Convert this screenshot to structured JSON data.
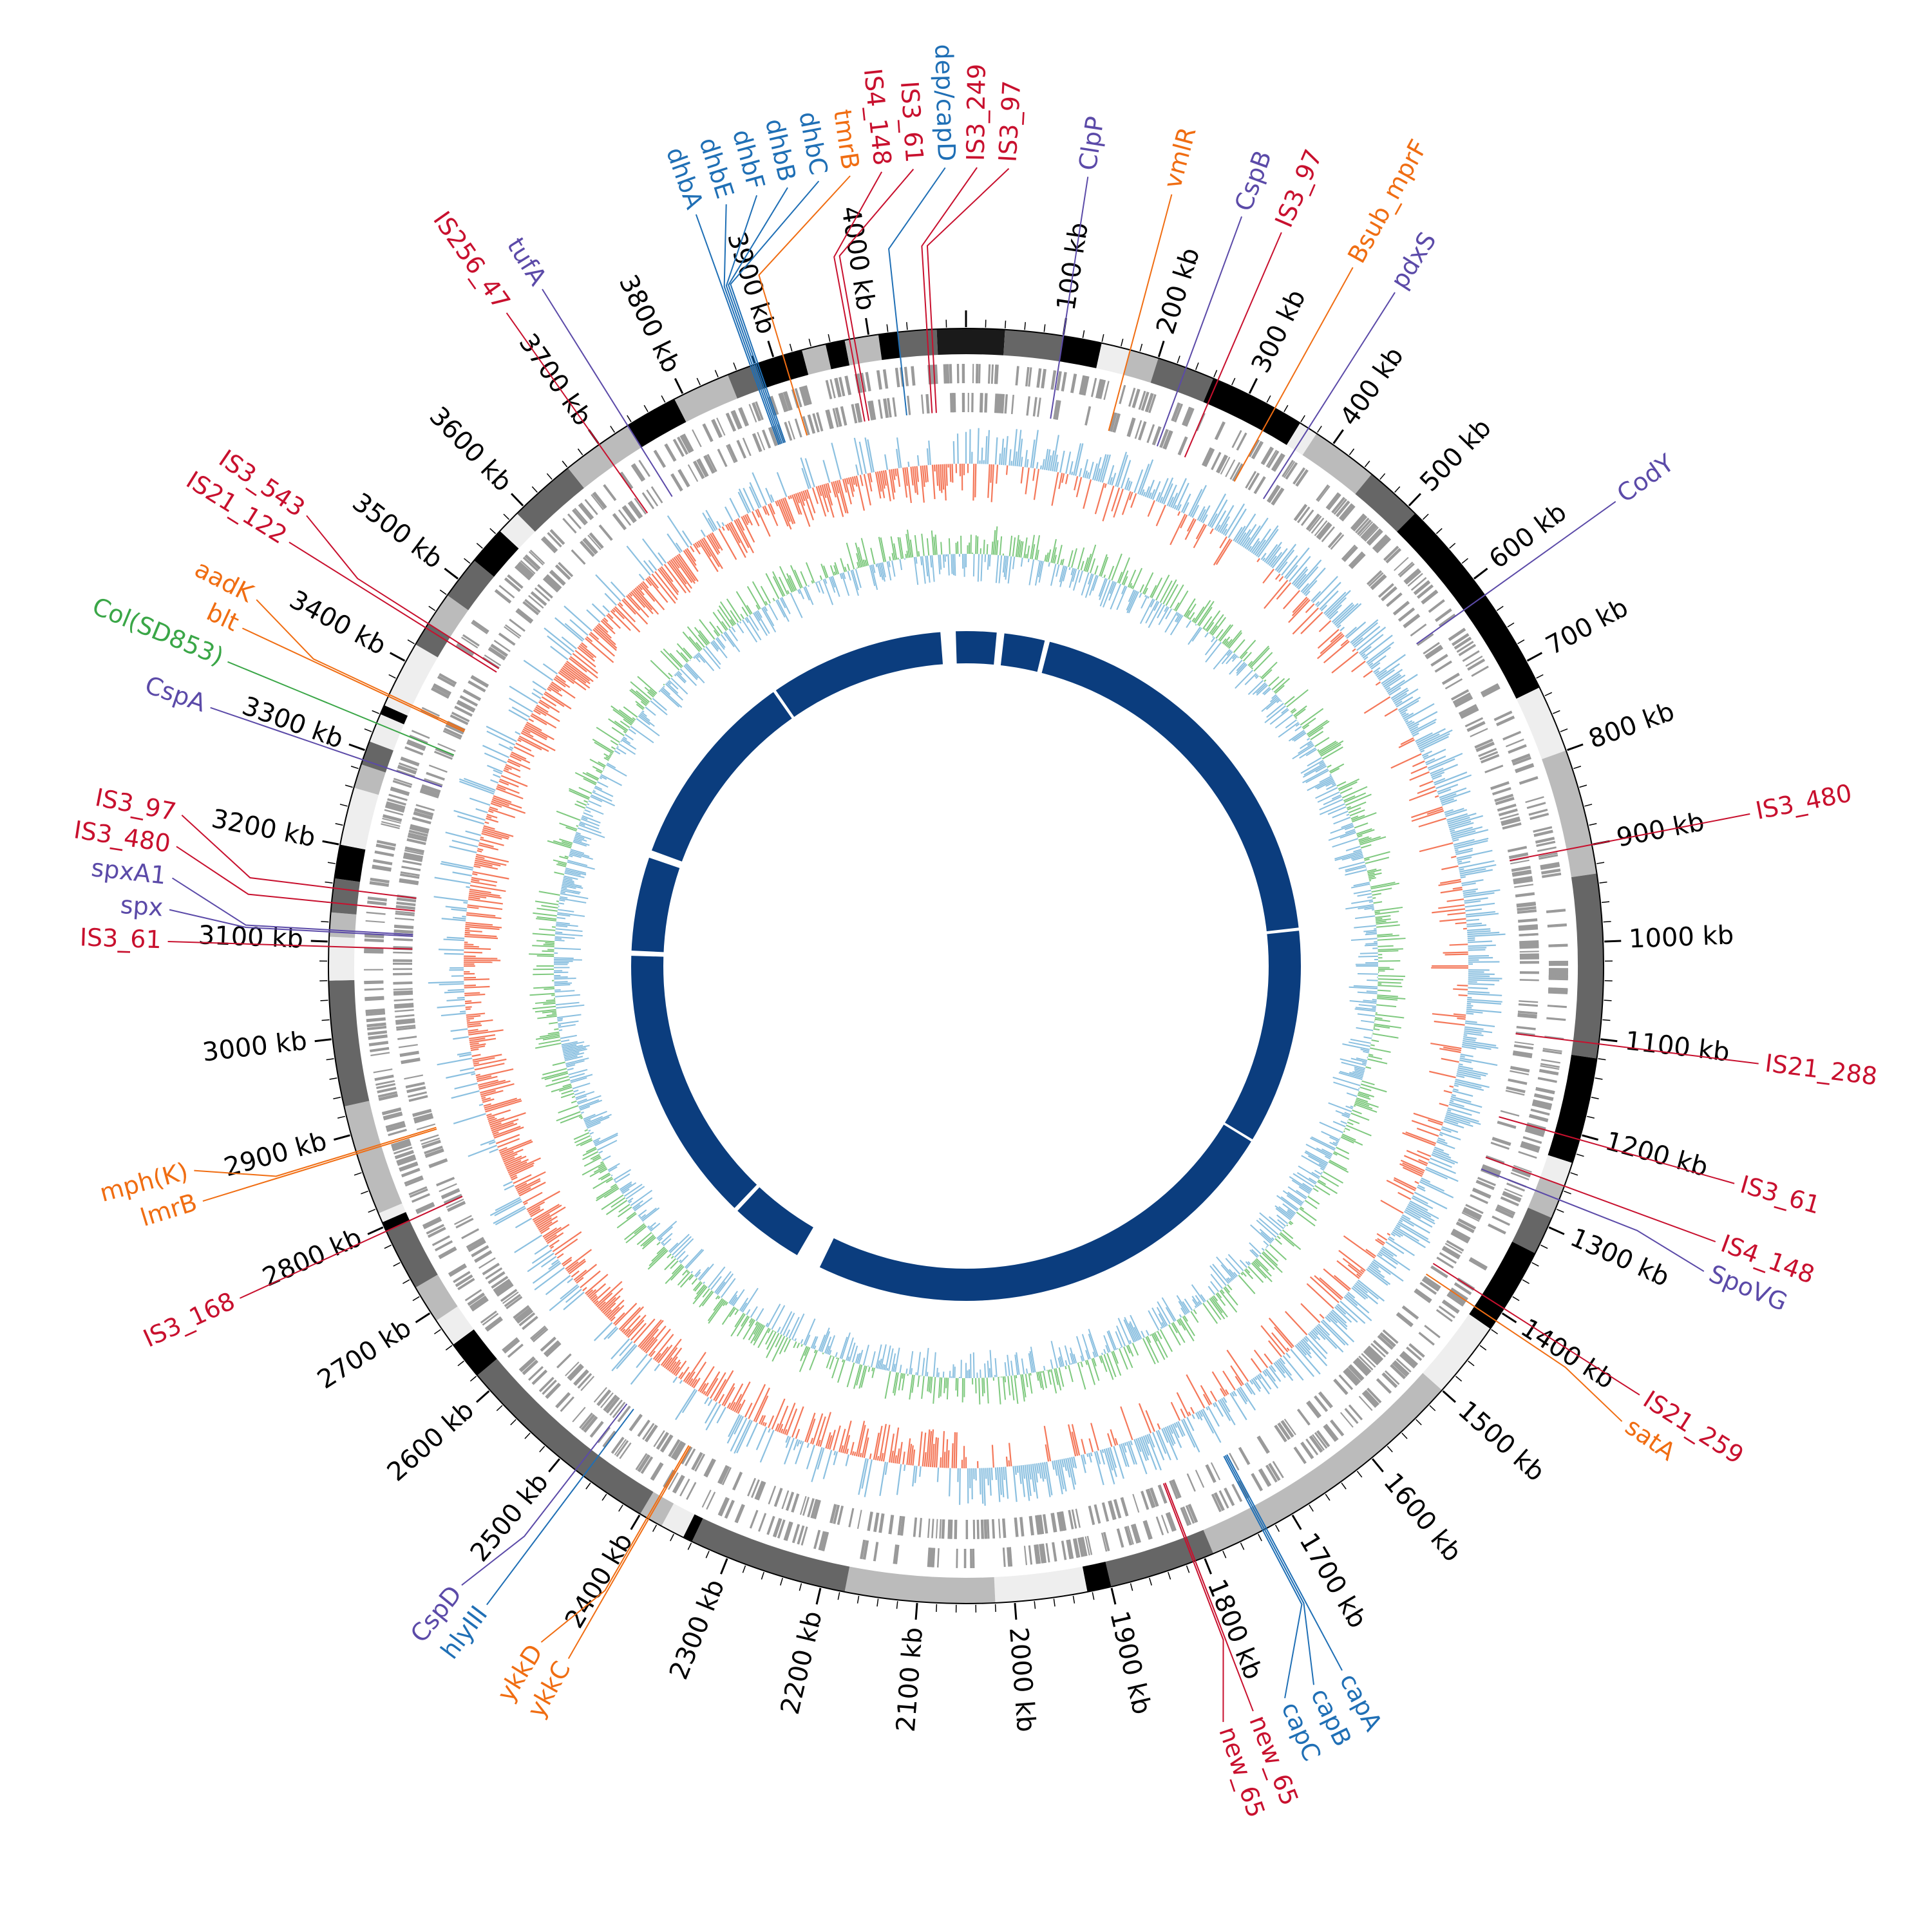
{
  "genome": {
    "length_kb": 4100,
    "ticks": [
      "100 kb",
      "200 kb",
      "300 kb",
      "400 kb",
      "500 kb",
      "600 kb",
      "700 kb",
      "800 kb",
      "900 kb",
      "1000 kb",
      "1100 kb",
      "1200 kb",
      "1300 kb",
      "1400 kb",
      "1500 kb",
      "1600 kb",
      "1700 kb",
      "1800 kb",
      "1900 kb",
      "2000 kb",
      "2100 kb",
      "2200 kb",
      "2300 kb",
      "2400 kb",
      "2500 kb",
      "2600 kb",
      "2700 kb",
      "2800 kb",
      "2900 kb",
      "3000 kb",
      "3100 kb",
      "3200 kb",
      "3300 kb",
      "3400 kb",
      "3500 kb",
      "3600 kb",
      "3700 kb",
      "3800 kb",
      "3900 kb",
      "4000 kb"
    ],
    "tick_values_kb": [
      100,
      200,
      300,
      400,
      500,
      600,
      700,
      800,
      900,
      1000,
      1100,
      1200,
      1300,
      1400,
      1500,
      1600,
      1700,
      1800,
      1900,
      2000,
      2100,
      2200,
      2300,
      2400,
      2500,
      2600,
      2700,
      2800,
      2900,
      3000,
      3100,
      3200,
      3300,
      3400,
      3500,
      3600,
      3700,
      3800,
      3900,
      4000
    ]
  },
  "colors": {
    "is_element": "#c8102e",
    "resistance": "#f06d12",
    "regulator": "#5b4aa8",
    "virulence": "#1f6fb5",
    "plasmid": "#3aa647",
    "gc_skew_pos": "#8bc0e0",
    "gc_skew_neg": "#f4785a",
    "gc_content": "#7fc97f",
    "homology": "#0b3d7e",
    "cds": "#9a9a9a"
  },
  "contigs": [
    {
      "start": 0,
      "end": 40,
      "shade": "#1a1a1a"
    },
    {
      "start": 40,
      "end": 100,
      "shade": "#666666"
    },
    {
      "start": 100,
      "end": 140,
      "shade": "#000000"
    },
    {
      "start": 140,
      "end": 170,
      "shade": "#eeeeee"
    },
    {
      "start": 170,
      "end": 200,
      "shade": "#bbbbbb"
    },
    {
      "start": 200,
      "end": 260,
      "shade": "#666666"
    },
    {
      "start": 260,
      "end": 360,
      "shade": "#000000"
    },
    {
      "start": 360,
      "end": 380,
      "shade": "#eeeeee"
    },
    {
      "start": 380,
      "end": 450,
      "shade": "#bbbbbb"
    },
    {
      "start": 450,
      "end": 510,
      "shade": "#666666"
    },
    {
      "start": 510,
      "end": 730,
      "shade": "#000000"
    },
    {
      "start": 730,
      "end": 800,
      "shade": "#eeeeee"
    },
    {
      "start": 800,
      "end": 930,
      "shade": "#bbbbbb"
    },
    {
      "start": 930,
      "end": 1120,
      "shade": "#666666"
    },
    {
      "start": 1120,
      "end": 1230,
      "shade": "#000000"
    },
    {
      "start": 1230,
      "end": 1255,
      "shade": "#eeeeee"
    },
    {
      "start": 1255,
      "end": 1290,
      "shade": "#bbbbbb"
    },
    {
      "start": 1290,
      "end": 1330,
      "shade": "#666666"
    },
    {
      "start": 1330,
      "end": 1420,
      "shade": "#000000"
    },
    {
      "start": 1420,
      "end": 1500,
      "shade": "#eeeeee"
    },
    {
      "start": 1500,
      "end": 1790,
      "shade": "#bbbbbb"
    },
    {
      "start": 1790,
      "end": 1900,
      "shade": "#666666"
    },
    {
      "start": 1900,
      "end": 1925,
      "shade": "#000000"
    },
    {
      "start": 1925,
      "end": 2020,
      "shade": "#eeeeee"
    },
    {
      "start": 2020,
      "end": 2175,
      "shade": "#bbbbbb"
    },
    {
      "start": 2175,
      "end": 2340,
      "shade": "#666666"
    },
    {
      "start": 2340,
      "end": 2350,
      "shade": "#000000"
    },
    {
      "start": 2350,
      "end": 2375,
      "shade": "#eeeeee"
    },
    {
      "start": 2375,
      "end": 2400,
      "shade": "#bbbbbb"
    },
    {
      "start": 2400,
      "end": 2620,
      "shade": "#666666"
    },
    {
      "start": 2620,
      "end": 2660,
      "shade": "#000000"
    },
    {
      "start": 2660,
      "end": 2690,
      "shade": "#eeeeee"
    },
    {
      "start": 2690,
      "end": 2730,
      "shade": "#bbbbbb"
    },
    {
      "start": 2730,
      "end": 2795,
      "shade": "#666666"
    },
    {
      "start": 2795,
      "end": 2805,
      "shade": "#000000"
    },
    {
      "start": 2805,
      "end": 2815,
      "shade": "#eeeeee"
    },
    {
      "start": 2815,
      "end": 2930,
      "shade": "#bbbbbb"
    },
    {
      "start": 2930,
      "end": 3060,
      "shade": "#666666"
    },
    {
      "start": 3060,
      "end": 3105,
      "shade": "#eeeeee"
    },
    {
      "start": 3105,
      "end": 3130,
      "shade": "#bbbbbb"
    },
    {
      "start": 3130,
      "end": 3165,
      "shade": "#666666"
    },
    {
      "start": 3165,
      "end": 3200,
      "shade": "#000000"
    },
    {
      "start": 3200,
      "end": 3260,
      "shade": "#eeeeee"
    },
    {
      "start": 3260,
      "end": 3285,
      "shade": "#bbbbbb"
    },
    {
      "start": 3285,
      "end": 3310,
      "shade": "#666666"
    },
    {
      "start": 3310,
      "end": 3340,
      "shade": "#eeeeee"
    },
    {
      "start": 3340,
      "end": 3350,
      "shade": "#000000"
    },
    {
      "start": 3350,
      "end": 3420,
      "shade": "#eeeeee"
    },
    {
      "start": 3420,
      "end": 3445,
      "shade": "#666666"
    },
    {
      "start": 3445,
      "end": 3480,
      "shade": "#bbbbbb"
    },
    {
      "start": 3480,
      "end": 3525,
      "shade": "#666666"
    },
    {
      "start": 3525,
      "end": 3565,
      "shade": "#000000"
    },
    {
      "start": 3565,
      "end": 3590,
      "shade": "#eeeeee"
    },
    {
      "start": 3590,
      "end": 3660,
      "shade": "#666666"
    },
    {
      "start": 3660,
      "end": 3735,
      "shade": "#bbbbbb"
    },
    {
      "start": 3735,
      "end": 3790,
      "shade": "#000000"
    },
    {
      "start": 3790,
      "end": 3850,
      "shade": "#bbbbbb"
    },
    {
      "start": 3850,
      "end": 3880,
      "shade": "#666666"
    },
    {
      "start": 3880,
      "end": 3930,
      "shade": "#000000"
    },
    {
      "start": 3930,
      "end": 3955,
      "shade": "#bbbbbb"
    },
    {
      "start": 3955,
      "end": 3975,
      "shade": "#000000"
    },
    {
      "start": 3975,
      "end": 4010,
      "shade": "#bbbbbb"
    },
    {
      "start": 4010,
      "end": 4030,
      "shade": "#000000"
    },
    {
      "start": 4030,
      "end": 4070,
      "shade": "#666666"
    },
    {
      "start": 4070,
      "end": 4100,
      "shade": "#1a1a1a"
    }
  ],
  "homology_gaps": [
    {
      "start": 4050,
      "end": 4080
    },
    {
      "start": 60,
      "end": 75
    },
    {
      "start": 155,
      "end": 165
    },
    {
      "start": 2345,
      "end": 2395
    },
    {
      "start": 2540,
      "end": 2548
    },
    {
      "start": 3095,
      "end": 3105
    },
    {
      "start": 3290,
      "end": 3305
    },
    {
      "start": 3700,
      "end": 3706
    },
    {
      "start": 1380,
      "end": 1385
    },
    {
      "start": 950,
      "end": 956
    }
  ],
  "annotations": [
    {
      "name": "ClpP",
      "pos": 100,
      "category": "regulator"
    },
    {
      "name": "vmlR",
      "pos": 170,
      "category": "resistance"
    },
    {
      "name": "CspB",
      "pos": 230,
      "category": "regulator"
    },
    {
      "name": "IS3_97",
      "pos": 265,
      "category": "is_element"
    },
    {
      "name": "Bsub_mprF",
      "pos": 330,
      "category": "resistance"
    },
    {
      "name": "pdxS",
      "pos": 370,
      "category": "regulator"
    },
    {
      "name": "CodY",
      "pos": 620,
      "category": "regulator"
    },
    {
      "name": "IS3_480",
      "pos": 900,
      "category": "is_element"
    },
    {
      "name": "IS21_288",
      "pos": 1105,
      "category": "is_element"
    },
    {
      "name": "IS3_61",
      "pos": 1205,
      "category": "is_element"
    },
    {
      "name": "IS4_148",
      "pos": 1255,
      "category": "is_element"
    },
    {
      "name": "SpoVG",
      "pos": 1270,
      "category": "regulator"
    },
    {
      "name": "IS21_259",
      "pos": 1395,
      "category": "is_element"
    },
    {
      "name": "satA",
      "pos": 1410,
      "category": "resistance"
    },
    {
      "name": "capA",
      "pos": 1730,
      "category": "virulence"
    },
    {
      "name": "capB",
      "pos": 1732,
      "category": "virulence"
    },
    {
      "name": "capC",
      "pos": 1734,
      "category": "virulence"
    },
    {
      "name": "new_65",
      "pos": 1810,
      "category": "is_element"
    },
    {
      "name": "new_65",
      "pos": 1812,
      "category": "is_element"
    },
    {
      "name": "ykkC",
      "pos": 2390,
      "category": "resistance"
    },
    {
      "name": "ykkD",
      "pos": 2392,
      "category": "resistance"
    },
    {
      "name": "hlyIII",
      "pos": 2470,
      "category": "virulence"
    },
    {
      "name": "CspD",
      "pos": 2480,
      "category": "regulator"
    },
    {
      "name": "IS3_168",
      "pos": 2795,
      "category": "is_element"
    },
    {
      "name": "lmrB",
      "pos": 2880,
      "category": "resistance"
    },
    {
      "name": "mph(K)",
      "pos": 2882,
      "category": "resistance"
    },
    {
      "name": "IS3_61",
      "pos": 3095,
      "category": "is_element"
    },
    {
      "name": "spx",
      "pos": 3110,
      "category": "regulator"
    },
    {
      "name": "spxA1",
      "pos": 3112,
      "category": "regulator"
    },
    {
      "name": "IS3_480",
      "pos": 3140,
      "category": "is_element"
    },
    {
      "name": "IS3_97",
      "pos": 3155,
      "category": "is_element"
    },
    {
      "name": "CspA",
      "pos": 3290,
      "category": "regulator"
    },
    {
      "name": "Col(SD853)",
      "pos": 3330,
      "category": "plasmid"
    },
    {
      "name": "blt",
      "pos": 3360,
      "category": "resistance"
    },
    {
      "name": "aadK",
      "pos": 3362,
      "category": "resistance"
    },
    {
      "name": "IS21_122",
      "pos": 3440,
      "category": "is_element"
    },
    {
      "name": "IS3_543",
      "pos": 3445,
      "category": "is_element"
    },
    {
      "name": "IS256_47",
      "pos": 3700,
      "category": "is_element"
    },
    {
      "name": "tufA",
      "pos": 3735,
      "category": "regulator"
    },
    {
      "name": "dhbA",
      "pos": 3875,
      "category": "virulence"
    },
    {
      "name": "dhbE",
      "pos": 3877,
      "category": "virulence"
    },
    {
      "name": "dhbF",
      "pos": 3879,
      "category": "virulence"
    },
    {
      "name": "dhbB",
      "pos": 3881,
      "category": "virulence"
    },
    {
      "name": "dhbC",
      "pos": 3883,
      "category": "virulence"
    },
    {
      "name": "tmrB",
      "pos": 3910,
      "category": "resistance"
    },
    {
      "name": "IS4_148",
      "pos": 3980,
      "category": "is_element"
    },
    {
      "name": "IS3_61",
      "pos": 3985,
      "category": "is_element"
    },
    {
      "name": "dep/capD",
      "pos": 4030,
      "category": "virulence"
    },
    {
      "name": "IS3_249",
      "pos": 4060,
      "category": "is_element"
    },
    {
      "name": "IS3_97",
      "pos": 4065,
      "category": "is_element"
    }
  ]
}
